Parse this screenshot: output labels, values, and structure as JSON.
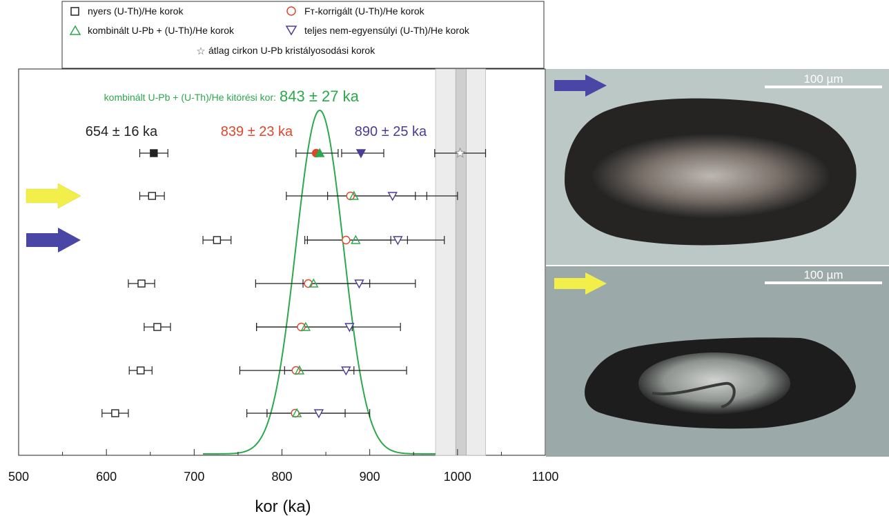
{
  "chart_data": {
    "type": "scatter",
    "xlabel": "kor (ka)",
    "xlim": [
      500,
      1100
    ],
    "x_ticks": [
      500,
      600,
      700,
      800,
      900,
      1000,
      1100
    ],
    "legend_placement": "top",
    "legend": [
      {
        "key": "raw",
        "label": "nyers (U-Th)/He korok",
        "marker": "square",
        "color": "#222222"
      },
      {
        "key": "ft",
        "label": "Fᴛ-korrigált (U-Th)/He korok",
        "marker": "circle",
        "color": "#e0462a"
      },
      {
        "key": "comb",
        "label": "kombinált U-Pb + (U-Th)/He korok",
        "marker": "triangle-up",
        "color": "#2aa84a"
      },
      {
        "key": "dis",
        "label": "teljes nem-egyensúlyi (U-Th)/He korok",
        "marker": "triangle-down",
        "color": "#4a3c96"
      },
      {
        "key": "upb",
        "label": "átlag cirkon U-Pb kristályosodási korok",
        "marker": "star",
        "color": "#9a9a9a"
      }
    ],
    "annotations": {
      "eruption_label": "kombinált U-Pb + (U-Th)/He kitörési kor:",
      "eruption_value": "843 ± 27 ka",
      "raw_mean": "654 ± 16 ka",
      "ft_mean": "839 ± 23 ka",
      "dis_mean": "890 ± 25 ka"
    },
    "colors": {
      "green": "#2aa84a",
      "red": "#e0462a",
      "purple": "#4a3c96",
      "raw": "#222222",
      "arrow_blue": "#4a46a6",
      "arrow_yellow": "#f2ee4a"
    },
    "mean_row": {
      "raw": {
        "value": 654,
        "err": 16
      },
      "ft": {
        "value": 839
      },
      "comb": {
        "value": 843
      },
      "dis": {
        "value": 890,
        "err": 25
      },
      "bars": [
        [
          816,
          864
        ],
        [
          868,
          916
        ]
      ],
      "upb": {
        "value": 1003,
        "err": 29
      }
    },
    "upb_band": {
      "inner": [
        998,
        1010
      ],
      "outer": [
        975,
        1032
      ]
    },
    "gaussian": {
      "mean": 843,
      "sigma": 27,
      "x_range": [
        710,
        975
      ]
    },
    "samples": [
      {
        "marker": "yellow",
        "raw": 652,
        "raw_err": 14,
        "ft": 878,
        "comb": 882,
        "dis": 926,
        "bar_a": [
          805,
          952
        ],
        "bar_b": [
          852,
          1000
        ],
        "ticks": [
          965
        ]
      },
      {
        "marker": "blue",
        "raw": 726,
        "raw_err": 16,
        "ft": 873,
        "comb": 884,
        "dis": 932,
        "bar_a": [
          826,
          924
        ],
        "bar_b": [
          829,
          985
        ],
        "ticks": [
          943
        ]
      },
      {
        "marker": "",
        "raw": 640,
        "raw_err": 15,
        "ft": 830,
        "comb": 836,
        "dis": 888,
        "bar_a": [
          770,
          900
        ],
        "bar_b": [
          824,
          952
        ],
        "ticks": []
      },
      {
        "marker": "",
        "raw": 658,
        "raw_err": 15,
        "ft": 822,
        "comb": 827,
        "dis": 877,
        "bar_a": [
          771,
          880
        ],
        "bar_b": [
          771,
          935
        ],
        "ticks": []
      },
      {
        "marker": "",
        "raw": 639,
        "raw_err": 13,
        "ft": 816,
        "comb": 820,
        "dis": 873,
        "bar_a": [
          752,
          882
        ],
        "bar_b": [
          803,
          942
        ],
        "ticks": []
      },
      {
        "marker": "",
        "raw": 610,
        "raw_err": 15,
        "ft": 815,
        "comb": 817,
        "dis": 842,
        "bar_a": [
          760,
          872
        ],
        "bar_b": [
          783,
          900
        ],
        "ticks": []
      }
    ],
    "photos": [
      {
        "scale_label": "100 µm",
        "arrow": "blue"
      },
      {
        "scale_label": "100 µm",
        "arrow": "yellow"
      }
    ]
  }
}
